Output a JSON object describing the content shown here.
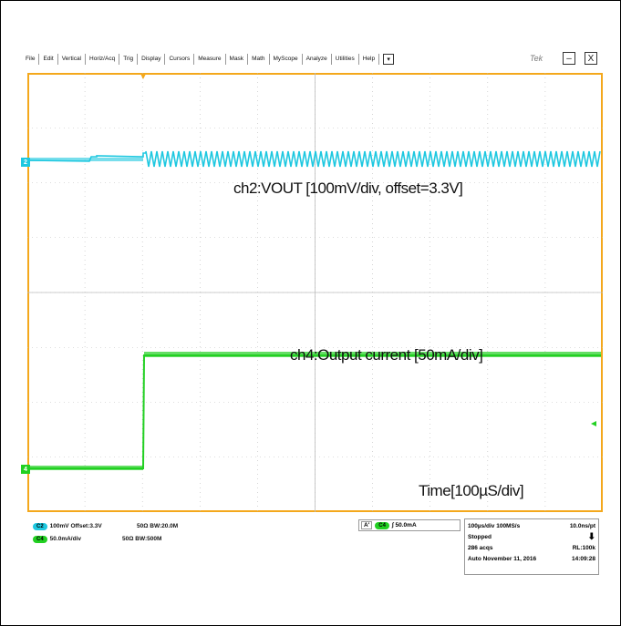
{
  "menu": [
    "File",
    "Edit",
    "Vertical",
    "Horiz/Acq",
    "Trig",
    "Display",
    "Cursors",
    "Measure",
    "Mask",
    "Math",
    "MyScope",
    "Analyze",
    "Utilities",
    "Help"
  ],
  "menu_dropdown": "▾",
  "window": {
    "brand": "Tek",
    "minimize": "–",
    "close": "X"
  },
  "channels": {
    "ch2_label": "ch2:VOUT [100mV/div, offset=3.3V]",
    "ch4_label": "ch4:Output current [50mA/div]",
    "time_label": "Time[100µS/div]",
    "ch2_marker": "2",
    "ch4_marker": "4"
  },
  "status": {
    "c2_chip": "C2",
    "c2_settings": "100mV  Offset:3.3V",
    "c2_imp": "50Ω  BW:20.0M",
    "c4_chip": "C4",
    "c4_settings": "50.0mA/div",
    "c4_imp": "50Ω  BW:500M",
    "trig_a": "A'",
    "trig_chip": "C4",
    "trig_level": "∫ 50.0mA"
  },
  "acquisition": {
    "timebase": "100µs/div  100MS/s",
    "sample": "10.0ns/pt",
    "state": "Stopped",
    "acqs": "286 acqs",
    "rl": "RL:100k",
    "mode_date": "Auto   November 11, 2016",
    "time": "14:09:28"
  },
  "colors": {
    "ch2": "#1ec8e0",
    "ch4": "#22d022",
    "frame": "#f4a81c"
  }
}
